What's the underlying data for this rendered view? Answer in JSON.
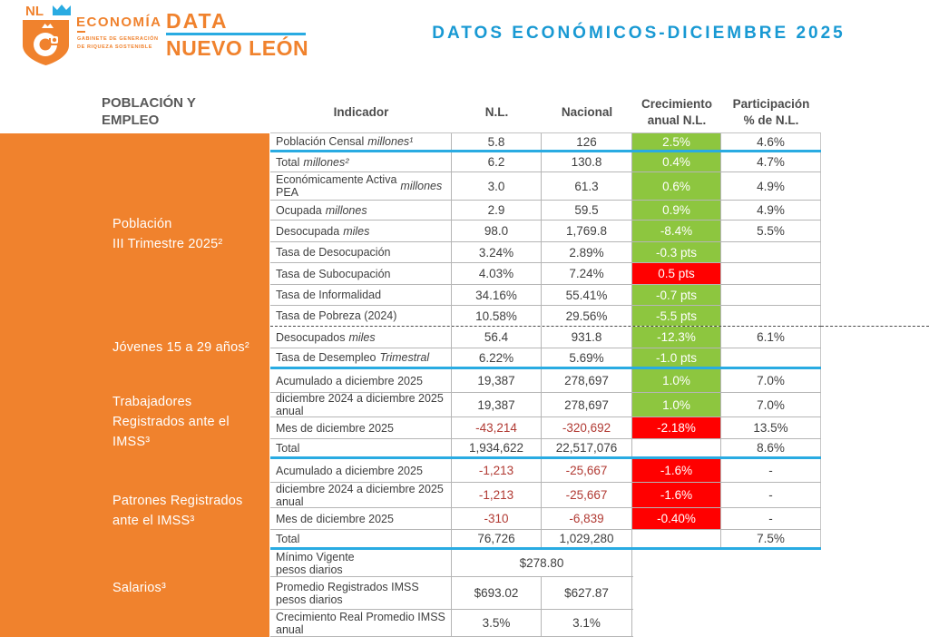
{
  "header": {
    "logo": {
      "nl": "NL",
      "economia": "ECONOMÍA",
      "sub": "GABINETE DE GENERACIÓN\nDE RIQUEZA SOSTENIBLE",
      "data": "DATA",
      "nuevo_leon": "NUEVO LEÓN"
    },
    "title": "DATOS ECONÓMICOS-DICIEMBRE 2025"
  },
  "section": {
    "label": "POBLACIÓN Y\nEMPLEO"
  },
  "sidebar": {
    "groups": [
      {
        "label": "Población\nIII Trimestre 2025²"
      },
      {
        "label": "Jóvenes 15 a 29 años²"
      },
      {
        "label": "Trabajadores\nRegistrados ante el\nIMSS³"
      },
      {
        "label": "Patrones Registrados\nante el IMSS³"
      },
      {
        "label": "Salarios³"
      }
    ]
  },
  "table": {
    "columns": [
      "Indicador",
      "N.L.",
      "Nacional",
      "Crecimiento\nanual N.L.",
      "Participación\n% de  N.L."
    ],
    "rows": [
      {
        "main": "Población Censal",
        "em": "millones¹",
        "nl": "5.8",
        "nacional": "126",
        "crec": "2.5%",
        "crecStyle": "green",
        "part": "4.6%",
        "sep": "teal"
      },
      {
        "main": "Total",
        "em": "millones²",
        "nl": "6.2",
        "nacional": "130.8",
        "crec": "0.4%",
        "crecStyle": "green",
        "part": "4.7%"
      },
      {
        "main": "Económicamente Activa\nPEA",
        "em": "millones",
        "nl": "3.0",
        "nacional": "61.3",
        "crec": "0.6%",
        "crecStyle": "green",
        "part": "4.9%"
      },
      {
        "main": "Ocupada",
        "em": "millones",
        "nl": "2.9",
        "nacional": "59.5",
        "crec": "0.9%",
        "crecStyle": "green",
        "part": "4.9%"
      },
      {
        "main": "Desocupada",
        "em": "miles",
        "nl": "98.0",
        "nacional": "1,769.8",
        "crec": "-8.4%",
        "crecStyle": "green",
        "part": "5.5%"
      },
      {
        "main": "Tasa de Desocupación",
        "nl": "3.24%",
        "nacional": "2.89%",
        "crec": "-0.3 pts",
        "crecStyle": "green",
        "part": ""
      },
      {
        "main": "Tasa de Subocupación",
        "nl": "4.03%",
        "nacional": "7.24%",
        "crec": "0.5 pts",
        "crecStyle": "red",
        "part": ""
      },
      {
        "main": "Tasa de Informalidad",
        "nl": "34.16%",
        "nacional": "55.41%",
        "crec": "-0.7 pts",
        "crecStyle": "green",
        "part": ""
      },
      {
        "main": "Tasa de Pobreza (2024)",
        "nl": "10.58%",
        "nacional": "29.56%",
        "crec": "-5.5 pts",
        "crecStyle": "green",
        "part": "",
        "sep": "dashed"
      },
      {
        "main": "Desocupados",
        "em": "miles",
        "nl": "56.4",
        "nacional": "931.8",
        "crec": "-12.3%",
        "crecStyle": "green",
        "part": "6.1%"
      },
      {
        "main": "Tasa de Desempleo",
        "em": "Trimestral",
        "nl": "6.22%",
        "nacional": "5.69%",
        "crec": "-1.0 pts",
        "crecStyle": "green",
        "part": "",
        "sep": "teal"
      },
      {
        "main": "Acumulado a diciembre 2025",
        "nl": "19,387",
        "nacional": "278,697",
        "crec": "1.0%",
        "crecStyle": "green",
        "part": "7.0%"
      },
      {
        "main": "diciembre 2024 a diciembre 2025 anual",
        "nl": "19,387",
        "nacional": "278,697",
        "crec": "1.0%",
        "crecStyle": "green",
        "part": "7.0%"
      },
      {
        "main": "Mes de diciembre 2025",
        "nl": "-43,214",
        "nacional": "-320,692",
        "crec": "-2.18%",
        "crecStyle": "red",
        "part": "13.5%",
        "neg": true
      },
      {
        "main": "Total",
        "nl": "1,934,622",
        "nacional": "22,517,076",
        "crec": "",
        "crecStyle": "none",
        "part": "8.6%",
        "sep": "teal"
      },
      {
        "main": "Acumulado a diciembre 2025",
        "nl": "-1,213",
        "nacional": "-25,667",
        "crec": "-1.6%",
        "crecStyle": "red",
        "part": "-",
        "neg": true
      },
      {
        "main": "diciembre 2024 a diciembre 2025 anual",
        "nl": "-1,213",
        "nacional": "-25,667",
        "crec": "-1.6%",
        "crecStyle": "red",
        "part": "-",
        "neg": true
      },
      {
        "main": "Mes de diciembre 2025",
        "nl": "-310",
        "nacional": "-6,839",
        "crec": "-0.40%",
        "crecStyle": "red",
        "part": "-",
        "neg": true
      },
      {
        "main": "Total",
        "nl": "76,726",
        "nacional": "1,029,280",
        "crec": "",
        "crecStyle": "none",
        "part": "7.5%",
        "sep": "teal"
      },
      {
        "main": "Mínimo Vigente\npesos diarios",
        "merged": "$278.80",
        "cols": 3
      },
      {
        "main": "Promedio Registrados IMSS\npesos diarios",
        "nl": "$693.02",
        "nacional": "$627.87",
        "cols": 3
      },
      {
        "main": "Crecimiento Real Promedio IMSS\nanual",
        "nl": "3.5%",
        "nacional": "3.1%",
        "cols": 3
      }
    ]
  },
  "colors": {
    "orange": "#F0822D",
    "teal": "#29ABE2",
    "title_teal": "#1899D3",
    "green": "#8DC63F",
    "red": "#FF0000",
    "negative_text": "#B13A33"
  }
}
